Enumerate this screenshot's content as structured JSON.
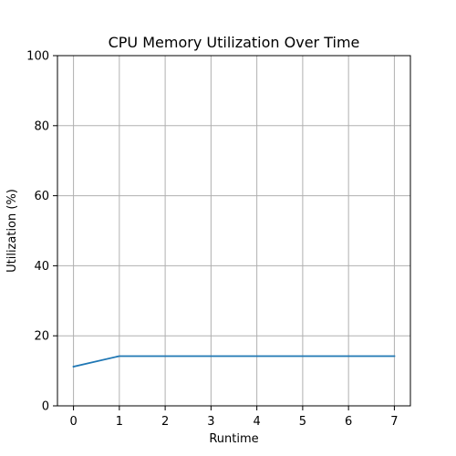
{
  "chart_data": {
    "type": "line",
    "title": "CPU Memory Utilization Over Time",
    "xlabel": "Runtime",
    "ylabel": "Utilization (%)",
    "x": [
      0,
      1,
      2,
      3,
      4,
      5,
      6,
      7
    ],
    "series": [
      {
        "values": [
          11.2,
          14.2,
          14.2,
          14.2,
          14.2,
          14.2,
          14.2,
          14.2
        ],
        "color": "#1f77b4"
      }
    ],
    "xlim": [
      -0.35,
      7.35
    ],
    "ylim": [
      0,
      100
    ],
    "xticks": [
      "0",
      "1",
      "2",
      "3",
      "4",
      "5",
      "6",
      "7"
    ],
    "yticks": [
      "0",
      "20",
      "40",
      "60",
      "80",
      "100"
    ],
    "grid": true,
    "legend": "none"
  }
}
